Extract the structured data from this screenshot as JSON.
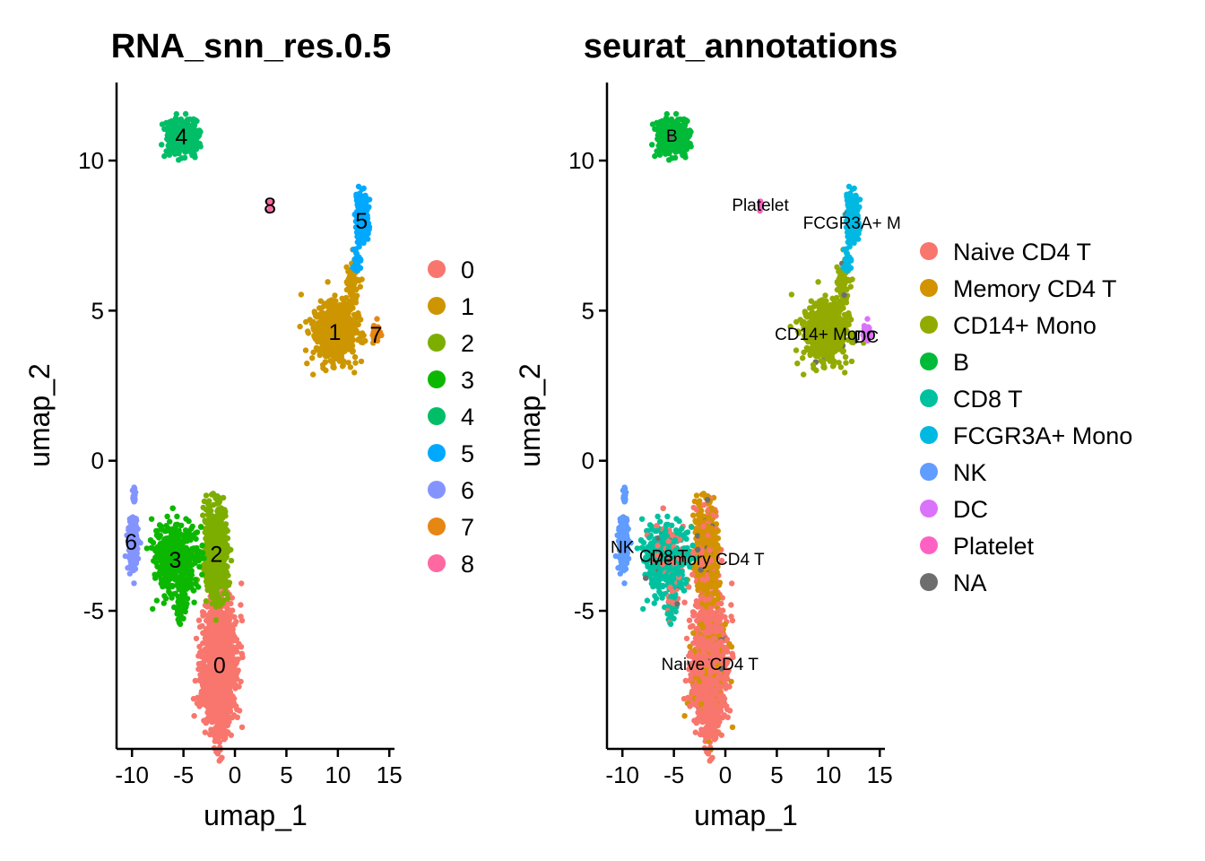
{
  "chart_data": [
    {
      "type": "scatter",
      "title": "RNA_snn_res.0.5",
      "xlabel": "umap_1",
      "ylabel": "umap_2",
      "xlim": [
        -11.5,
        15.5
      ],
      "ylim": [
        -9.6,
        12.6
      ],
      "xticks": [
        -10,
        -5,
        0,
        5,
        10,
        15
      ],
      "xtick_labels": [
        "-10",
        "-5",
        "0",
        "5",
        "10",
        "15"
      ],
      "yticks": [
        -5,
        0,
        5,
        10
      ],
      "ytick_labels": [
        "-5",
        "0",
        "5",
        "10"
      ],
      "grid": false,
      "legend_position": "right",
      "series": [
        {
          "name": "0",
          "color": "#F8766D",
          "label": "0",
          "label_at": [
            -1.5,
            -6.8
          ]
        },
        {
          "name": "1",
          "color": "#CD9600",
          "label": "1",
          "label_at": [
            9.7,
            4.3
          ]
        },
        {
          "name": "2",
          "color": "#7CAE00",
          "label": "2",
          "label_at": [
            -1.8,
            -3.1
          ]
        },
        {
          "name": "3",
          "color": "#0CB702",
          "label": "3",
          "label_at": [
            -5.8,
            -3.3
          ]
        },
        {
          "name": "4",
          "color": "#00BE67",
          "label": "4",
          "label_at": [
            -5.2,
            10.8
          ]
        },
        {
          "name": "5",
          "color": "#00A9FF",
          "label": "5",
          "label_at": [
            12.3,
            8.0
          ]
        },
        {
          "name": "6",
          "color": "#8494FF",
          "label": "6",
          "label_at": [
            -10.1,
            -2.7
          ]
        },
        {
          "name": "7",
          "color": "#E68613",
          "label": "7",
          "label_at": [
            13.7,
            4.2
          ]
        },
        {
          "name": "8",
          "color": "#FF68A1",
          "label": "8",
          "label_at": [
            3.4,
            8.5
          ]
        }
      ]
    },
    {
      "type": "scatter",
      "title": "seurat_annotations",
      "xlabel": "umap_1",
      "ylabel": "umap_2",
      "xlim": [
        -11.5,
        15.5
      ],
      "ylim": [
        -9.6,
        12.6
      ],
      "xticks": [
        -10,
        -5,
        0,
        5,
        10,
        15
      ],
      "xtick_labels": [
        "-10",
        "-5",
        "0",
        "5",
        "10",
        "15"
      ],
      "yticks": [
        -5,
        0,
        5,
        10
      ],
      "ytick_labels": [
        "-5",
        "0",
        "5",
        "10"
      ],
      "grid": false,
      "legend_position": "right",
      "series": [
        {
          "name": "Naive CD4 T",
          "color": "#F8766D",
          "label": "Naive CD4 T",
          "label_at": [
            -1.5,
            -6.7
          ]
        },
        {
          "name": "Memory CD4 T",
          "color": "#D39200",
          "label": "Memory CD4 T",
          "label_at": [
            -1.8,
            -3.2
          ]
        },
        {
          "name": "CD14+ Mono",
          "color": "#93AA00",
          "label": "CD14+ Mono",
          "label_at": [
            9.7,
            4.3
          ]
        },
        {
          "name": "B",
          "color": "#00BA38",
          "label": "B",
          "label_at": [
            -5.2,
            10.9
          ]
        },
        {
          "name": "CD8 T",
          "color": "#00C19F",
          "label": "CD8 T",
          "label_at": [
            -6.0,
            -3.1
          ]
        },
        {
          "name": "FCGR3A+ Mono",
          "color": "#00B9E3",
          "label": "FCGR3A+ M",
          "label_at": [
            12.3,
            8.0
          ]
        },
        {
          "name": "NK",
          "color": "#619CFF",
          "label": "NK",
          "label_at": [
            -10.0,
            -2.8
          ]
        },
        {
          "name": "DC",
          "color": "#DB72FB",
          "label": "DC",
          "label_at": [
            13.7,
            4.2
          ]
        },
        {
          "name": "Platelet",
          "color": "#FF61C3",
          "label": "Platelet",
          "label_at": [
            3.4,
            8.6
          ]
        },
        {
          "name": "NA",
          "color": "#6E6E6E",
          "label": "",
          "label_at": [
            0,
            0
          ]
        }
      ]
    }
  ]
}
